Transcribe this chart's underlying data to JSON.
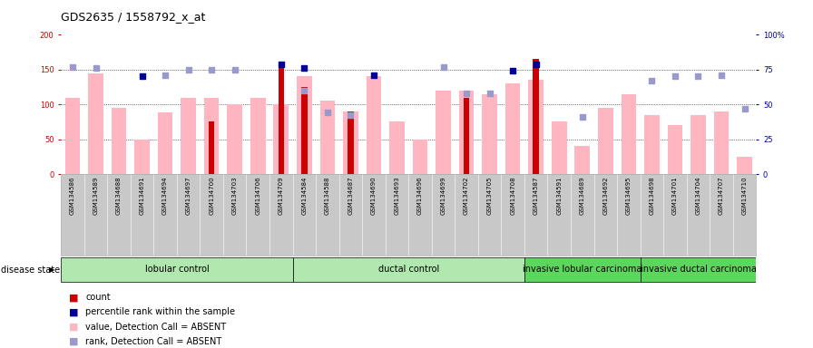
{
  "title": "GDS2635 / 1558792_x_at",
  "samples": [
    "GSM134586",
    "GSM134589",
    "GSM134688",
    "GSM134691",
    "GSM134694",
    "GSM134697",
    "GSM134700",
    "GSM134703",
    "GSM134706",
    "GSM134709",
    "GSM134584",
    "GSM134588",
    "GSM134687",
    "GSM134690",
    "GSM134693",
    "GSM134696",
    "GSM134699",
    "GSM134702",
    "GSM134705",
    "GSM134708",
    "GSM134587",
    "GSM134591",
    "GSM134689",
    "GSM134692",
    "GSM134695",
    "GSM134698",
    "GSM134701",
    "GSM134704",
    "GSM134707",
    "GSM134710"
  ],
  "groups": [
    {
      "label": "lobular control",
      "start": 0,
      "end": 10,
      "color": "#b0e8b0"
    },
    {
      "label": "ductal control",
      "start": 10,
      "end": 20,
      "color": "#b0e8b0"
    },
    {
      "label": "invasive lobular carcinoma",
      "start": 20,
      "end": 25,
      "color": "#5cd65c"
    },
    {
      "label": "invasive ductal carcinoma",
      "start": 25,
      "end": 30,
      "color": "#5cd65c"
    }
  ],
  "count_values": [
    0,
    0,
    0,
    0,
    0,
    0,
    75,
    0,
    0,
    155,
    125,
    0,
    90,
    0,
    0,
    0,
    0,
    110,
    0,
    0,
    165,
    0,
    0,
    0,
    0,
    0,
    0,
    0,
    0,
    0
  ],
  "percentile_rank": [
    null,
    null,
    null,
    70,
    null,
    null,
    null,
    null,
    null,
    79,
    76,
    null,
    null,
    71,
    null,
    null,
    null,
    null,
    null,
    74,
    79,
    null,
    null,
    null,
    null,
    null,
    null,
    null,
    null,
    null
  ],
  "value_absent": [
    110,
    145,
    95,
    50,
    88,
    110,
    110,
    100,
    110,
    100,
    140,
    105,
    90,
    140,
    75,
    50,
    120,
    120,
    115,
    130,
    135,
    75,
    40,
    95,
    115,
    85,
    70,
    85,
    90,
    25
  ],
  "rank_absent": [
    77,
    76,
    null,
    null,
    71,
    75,
    75,
    75,
    null,
    null,
    60,
    44,
    42,
    null,
    null,
    null,
    77,
    58,
    58,
    null,
    null,
    null,
    41,
    null,
    null,
    67,
    70,
    70,
    71,
    47
  ],
  "ylim_left": [
    0,
    200
  ],
  "ylim_right": [
    0,
    100
  ],
  "yticks_left": [
    0,
    50,
    100,
    150,
    200
  ],
  "ytick_labels_left": [
    "0",
    "50",
    "100",
    "150",
    "200"
  ],
  "yticks_right": [
    0,
    25,
    50,
    75,
    100
  ],
  "ytick_labels_right": [
    "0",
    "25",
    "50",
    "75",
    "100%"
  ],
  "bar_color_dark": "#CC0000",
  "bar_color_light": "#FFB6C1",
  "dot_color_dark": "#000099",
  "dot_color_light": "#9999CC",
  "bg_color": "#FFFFFF",
  "plot_bg": "#FFFFFF",
  "tick_area_bg": "#C8C8C8",
  "legend_items": [
    {
      "color": "#CC0000",
      "label": "count"
    },
    {
      "color": "#000099",
      "label": "percentile rank within the sample"
    },
    {
      "color": "#FFB6C1",
      "label": "value, Detection Call = ABSENT"
    },
    {
      "color": "#9999CC",
      "label": "rank, Detection Call = ABSENT"
    }
  ],
  "disease_state_label": "disease state",
  "fontsize_title": 9,
  "fontsize_ticks": 6,
  "fontsize_legend": 7,
  "fontsize_group": 7,
  "fontsize_disease": 7,
  "fontsize_sample": 5
}
